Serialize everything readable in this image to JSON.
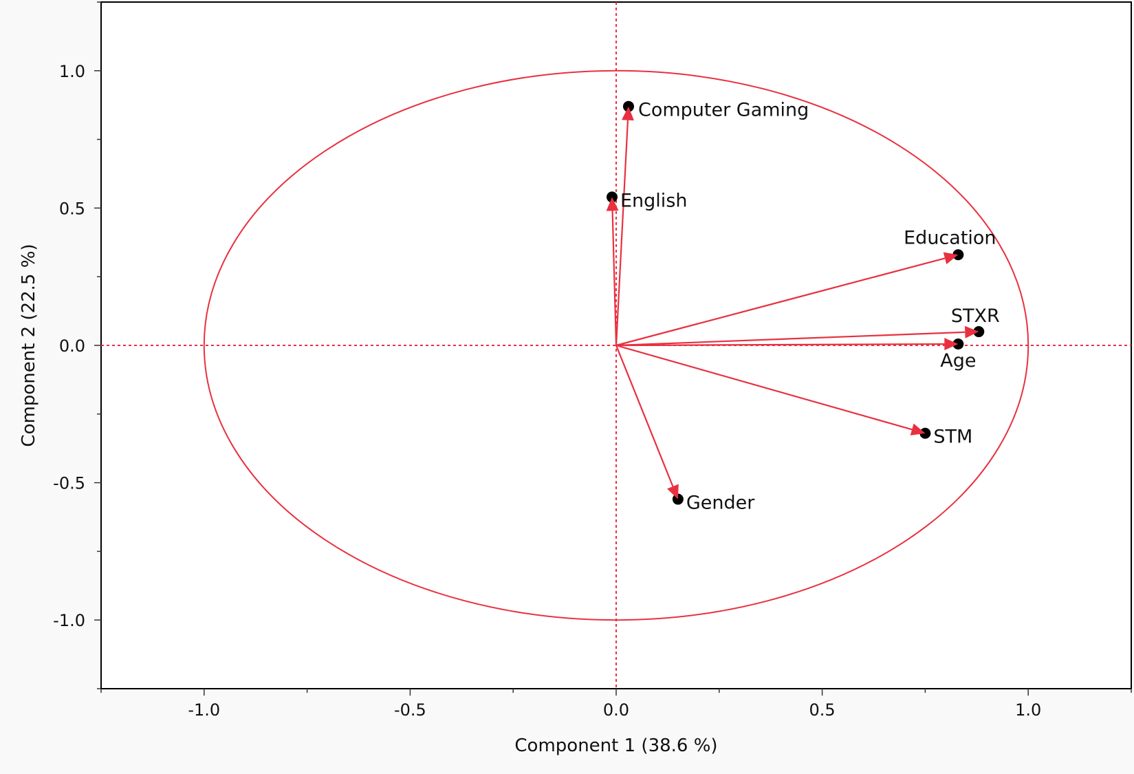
{
  "chart_data": {
    "type": "scatter",
    "title": "",
    "xlabel": "Component 1  (38.6 %)",
    "ylabel": "Component 2  (22.5 %)",
    "xlim": [
      -1.25,
      1.25
    ],
    "ylim": [
      -1.25,
      1.25
    ],
    "x_ticks": [
      -1.0,
      -0.5,
      0.0,
      0.5,
      1.0
    ],
    "y_ticks": [
      1.0,
      0.5,
      0.0,
      -0.5,
      -1.0
    ],
    "x_tick_labels": [
      "-1.0",
      "-0.5",
      "0.0",
      "0.5",
      "1.0"
    ],
    "y_tick_labels": [
      "1.0",
      "0.5",
      "0.0",
      "-0.5",
      "-1.0"
    ],
    "grid": false,
    "unit_circle": true,
    "origin_lines": true,
    "colors": {
      "vector": "#e8303f",
      "circle": "#e8303f",
      "point": "#000000"
    },
    "points": [
      {
        "label": "Computer Gaming",
        "x": 0.03,
        "y": 0.87
      },
      {
        "label": "English",
        "x": -0.01,
        "y": 0.54
      },
      {
        "label": "Education",
        "x": 0.83,
        "y": 0.33
      },
      {
        "label": "STXR",
        "x": 0.88,
        "y": 0.05
      },
      {
        "label": "Age",
        "x": 0.83,
        "y": 0.005
      },
      {
        "label": "STM",
        "x": 0.75,
        "y": -0.32
      },
      {
        "label": "Gender",
        "x": 0.15,
        "y": -0.56
      }
    ]
  }
}
